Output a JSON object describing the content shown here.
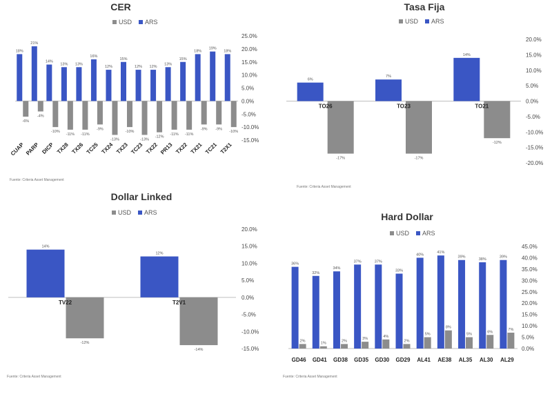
{
  "chart_data": [
    {
      "type": "bar",
      "title": "CER",
      "legend": [
        "USD",
        "ARS"
      ],
      "categories": [
        "CUAP",
        "PARP",
        "DICP",
        "TX28",
        "TX26",
        "TC25",
        "TX24",
        "TX23",
        "TC23",
        "TX22",
        "PR13",
        "TX22",
        "TX21",
        "TC21",
        "T2X1"
      ],
      "series": [
        {
          "name": "USD",
          "values": [
            -6,
            -4,
            -10,
            -11,
            -11,
            -9,
            -13,
            -10,
            -13,
            -12,
            -11,
            -11,
            -9,
            -9,
            -10
          ]
        },
        {
          "name": "ARS",
          "values": [
            18,
            21,
            14,
            13,
            13,
            16,
            12,
            15,
            12,
            12,
            13,
            15,
            18,
            19,
            18
          ]
        }
      ],
      "data_labels": {
        "USD": [
          "-6%",
          "-4%",
          "-10%",
          "-11%",
          "-11%",
          "-9%",
          "-13%",
          "-10%",
          "-13%",
          "-12%",
          "-11%",
          "-11%",
          "-9%",
          "-9%",
          "-10%"
        ],
        "ARS": [
          "18%",
          "21%",
          "14%",
          "13%",
          "13%",
          "16%",
          "12%",
          "15%",
          "12%",
          "12%",
          "13%",
          "15%",
          "18%",
          "19%",
          "18%"
        ]
      },
      "yticks": [
        "25.0%",
        "20.0%",
        "15.0%",
        "10.0%",
        "5.0%",
        "0.0%",
        "-5.0%",
        "-10.0%",
        "-15.0%"
      ],
      "ylim": [
        -15,
        25
      ],
      "source": "Fuente: Criteria Asset Management",
      "colors": {
        "USD": "#8c8c8c",
        "ARS": "#3a56c4"
      }
    },
    {
      "type": "bar",
      "title": "Tasa Fija",
      "legend": [
        "USD",
        "ARS"
      ],
      "categories": [
        "TO26",
        "TO23",
        "TO21"
      ],
      "series": [
        {
          "name": "USD",
          "values": [
            -17,
            -17,
            -12
          ]
        },
        {
          "name": "ARS",
          "values": [
            6,
            7,
            14
          ]
        }
      ],
      "data_labels": {
        "USD": [
          "-17%",
          "-17%",
          "-12%"
        ],
        "ARS": [
          "6%",
          "7%",
          "14%"
        ]
      },
      "yticks": [
        "20.0%",
        "15.0%",
        "10.0%",
        "5.0%",
        "0.0%",
        "-5.0%",
        "-10.0%",
        "-15.0%",
        "-20.0%"
      ],
      "ylim": [
        -20,
        20
      ],
      "source": "Fuente: Criteria Asset Management",
      "colors": {
        "USD": "#8c8c8c",
        "ARS": "#3a56c4"
      }
    },
    {
      "type": "bar",
      "title": "Dollar Linked",
      "legend": [
        "USD",
        "ARS"
      ],
      "categories": [
        "TV22",
        "T2V1"
      ],
      "series": [
        {
          "name": "USD",
          "values": [
            -12,
            -14
          ]
        },
        {
          "name": "ARS",
          "values": [
            14,
            12
          ]
        }
      ],
      "data_labels": {
        "USD": [
          "-12%",
          "-14%"
        ],
        "ARS": [
          "14%",
          "12%"
        ]
      },
      "yticks": [
        "20.0%",
        "15.0%",
        "10.0%",
        "5.0%",
        "0.0%",
        "-5.0%",
        "-10.0%",
        "-15.0%"
      ],
      "ylim": [
        -15,
        20
      ],
      "source": "Fuente: Criteria Asset Management",
      "colors": {
        "USD": "#8c8c8c",
        "ARS": "#3a56c4"
      }
    },
    {
      "type": "bar",
      "title": "Hard Dollar",
      "legend": [
        "USD",
        "ARS"
      ],
      "categories": [
        "GD46",
        "GD41",
        "GD38",
        "GD35",
        "GD30",
        "GD29",
        "AL41",
        "AE38",
        "AL35",
        "AL30",
        "AL29"
      ],
      "series": [
        {
          "name": "USD",
          "values": [
            2,
            1,
            2,
            3,
            4,
            2,
            5,
            8,
            5,
            6,
            7
          ]
        },
        {
          "name": "ARS",
          "values": [
            36,
            32,
            34,
            37,
            37,
            33,
            40,
            41,
            39,
            38,
            39
          ]
        }
      ],
      "data_labels": {
        "USD": [
          "2%",
          "1%",
          "2%",
          "3%",
          "4%",
          "2%",
          "5%",
          "8%",
          "5%",
          "6%",
          "7%"
        ],
        "ARS": [
          "36%",
          "32%",
          "34%",
          "37%",
          "37%",
          "33%",
          "40%",
          "41%",
          "39%",
          "38%",
          "39%"
        ]
      },
      "yticks": [
        "45.0%",
        "40.0%",
        "35.0%",
        "30.0%",
        "25.0%",
        "20.0%",
        "15.0%",
        "10.0%",
        "5.0%",
        "0.0%"
      ],
      "ylim": [
        0,
        45
      ],
      "source": "Fuente: Criteria Asset Management",
      "colors": {
        "USD": "#8c8c8c",
        "ARS": "#3a56c4"
      }
    }
  ]
}
